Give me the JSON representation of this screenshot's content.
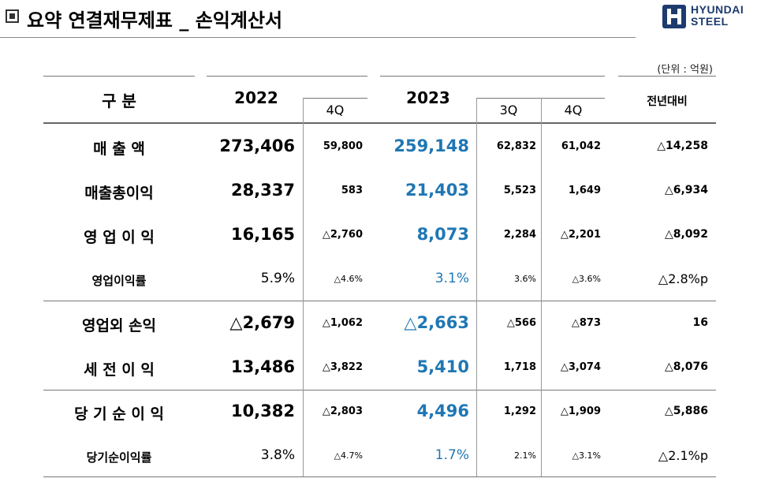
{
  "header": {
    "title": "요약 연결재무제표 _ 손익계산서",
    "logo_text": [
      "HYUNDAI",
      "STEEL"
    ],
    "unit": "(단위 : 억원)"
  },
  "columns": {
    "category": "구 분",
    "y2022": "2022",
    "q4_2022": "4Q",
    "y2023": "2023",
    "q3_2023": "3Q",
    "q4_2023": "4Q",
    "yoy": "전년대비"
  },
  "rows": [
    {
      "label": "매 출 액",
      "y2022": "273,406",
      "q4_2022": "59,800",
      "y2023": "259,148",
      "q3_2023": "62,832",
      "q4_2023": "61,042",
      "yoy": "△14,258",
      "rate": false
    },
    {
      "label": "매출총이익",
      "y2022": "28,337",
      "q4_2022": "583",
      "y2023": "21,403",
      "q3_2023": "5,523",
      "q4_2023": "1,649",
      "yoy": "△6,934",
      "rate": false
    },
    {
      "label": "영 업 이 익",
      "y2022": "16,165",
      "q4_2022": "△2,760",
      "y2023": "8,073",
      "q3_2023": "2,284",
      "q4_2023": "△2,201",
      "yoy": "△8,092",
      "rate": false
    },
    {
      "label": "영업이익률",
      "y2022": "5.9%",
      "q4_2022": "△4.6%",
      "y2023": "3.1%",
      "q3_2023": "3.6%",
      "q4_2023": "△3.6%",
      "yoy": "△2.8%p",
      "rate": true
    },
    {
      "label": "영업외 손익",
      "y2022": "△2,679",
      "q4_2022": "△1,062",
      "y2023": "△2,663",
      "q3_2023": "△566",
      "q4_2023": "△873",
      "yoy": "16",
      "rate": false
    },
    {
      "label": "세 전 이 익",
      "y2022": "13,486",
      "q4_2022": "△3,822",
      "y2023": "5,410",
      "q3_2023": "1,718",
      "q4_2023": "△3,074",
      "yoy": "△8,076",
      "rate": false
    },
    {
      "label": "당 기 순 이 익",
      "y2022": "10,382",
      "q4_2022": "△2,803",
      "y2023": "4,496",
      "q3_2023": "1,292",
      "q4_2023": "△1,909",
      "yoy": "△5,886",
      "rate": false
    },
    {
      "label": "당기순이익률",
      "y2022": "3.8%",
      "q4_2022": "△4.7%",
      "y2023": "1.7%",
      "q3_2023": "2.1%",
      "q4_2023": "△3.1%",
      "yoy": "△2.1%p",
      "rate": true
    }
  ],
  "colors": {
    "highlight_2023": "#1f77b4",
    "logo": "#1d3b6e"
  }
}
